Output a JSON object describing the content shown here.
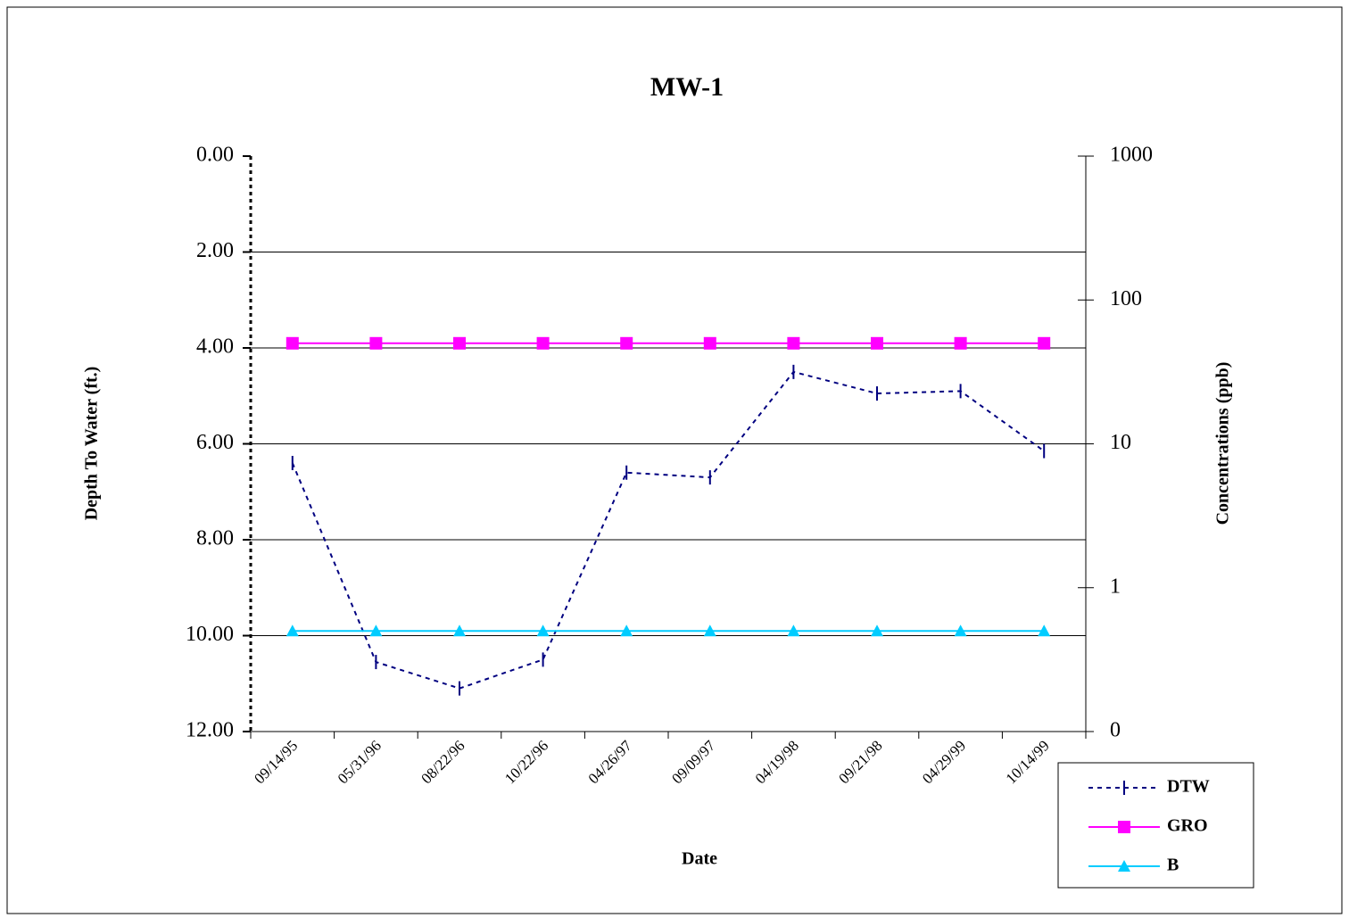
{
  "chart_data": {
    "type": "line",
    "title": "MW-1",
    "x_label": "Date",
    "y_label": "Depth To Water (ft.)",
    "y2_label": "Concentrations (ppb)",
    "categories": [
      "09/14/95",
      "05/31/96",
      "08/22/96",
      "10/22/96",
      "04/26/97",
      "09/09/97",
      "04/19/98",
      "09/21/98",
      "04/29/99",
      "10/14/99"
    ],
    "series": [
      {
        "name": "DTW",
        "color": "#000080",
        "dash": true,
        "marker": "dash",
        "values": [
          6.4,
          10.55,
          11.1,
          10.5,
          6.6,
          6.7,
          4.5,
          4.95,
          4.9,
          6.15
        ]
      },
      {
        "name": "GRO",
        "color": "#ff00ff",
        "marker": "square",
        "axis": "y2",
        "values": [
          50,
          50,
          50,
          50,
          50,
          50,
          50,
          50,
          50,
          50
        ]
      },
      {
        "name": "B",
        "color": "#00ccff",
        "marker": "triangle",
        "axis": "y2",
        "values": [
          0.5,
          0.5,
          0.5,
          0.5,
          0.5,
          0.5,
          0.5,
          0.5,
          0.5,
          0.5
        ]
      }
    ],
    "ylim": [
      0,
      12
    ],
    "y_reversed": true,
    "yticks": [
      {
        "value": 0,
        "label": "0.00"
      },
      {
        "value": 2,
        "label": "2.00"
      },
      {
        "value": 4,
        "label": "4.00"
      },
      {
        "value": 6,
        "label": "6.00"
      },
      {
        "value": 8,
        "label": "8.00"
      },
      {
        "value": 10,
        "label": "10.00"
      },
      {
        "value": 12,
        "label": "12.00"
      }
    ],
    "y2lim": [
      0.1,
      1000
    ],
    "y2_log": true,
    "y2ticks": [
      {
        "value": 0.1,
        "label": "0"
      },
      1,
      10,
      100,
      1000
    ],
    "grid": true,
    "legend": "bottom-right"
  }
}
